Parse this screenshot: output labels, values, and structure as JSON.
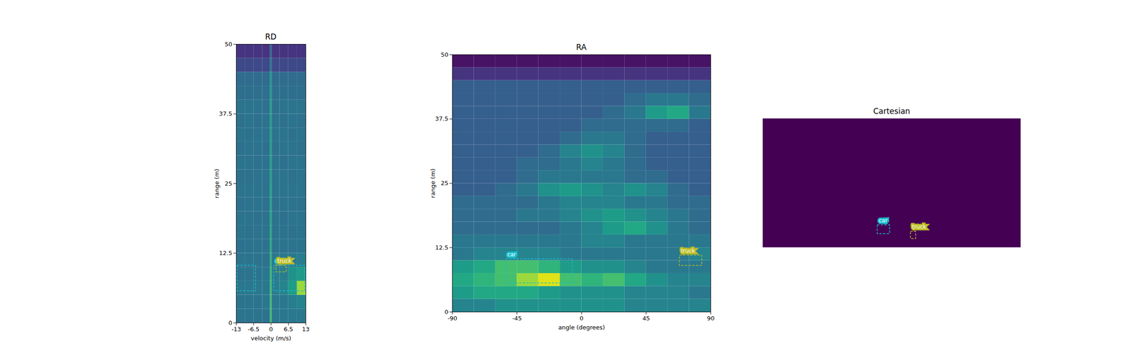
{
  "chart_data": [
    {
      "type": "heatmap",
      "title": "RD",
      "x_label": "velocity (m/s)",
      "y_label": "range (m)",
      "xlim": [
        -13,
        13
      ],
      "xticks": [
        -13,
        -6.5,
        0,
        6.5,
        13
      ],
      "ylim": [
        0,
        50
      ],
      "yticks": [
        0,
        12.5,
        25,
        37.5,
        50
      ],
      "zlim": [
        0,
        1
      ],
      "cells": {
        "x_bins": [
          -13,
          -9.75,
          -6.5,
          -3.25,
          -0.3,
          0.3,
          3.25,
          6.5,
          9.75,
          13
        ],
        "y_bins": [
          0,
          2.5,
          5,
          7.5,
          10,
          12.5,
          15,
          17.5,
          20,
          22.5,
          25,
          27.5,
          30,
          32.5,
          35,
          37.5,
          40,
          42.5,
          45,
          47.5,
          50
        ],
        "z": [
          [
            0.38,
            0.38,
            0.38,
            0.38,
            0.7,
            0.4,
            0.4,
            0.4,
            0.4
          ],
          [
            0.38,
            0.38,
            0.38,
            0.4,
            0.7,
            0.4,
            0.4,
            0.42,
            0.45
          ],
          [
            0.4,
            0.4,
            0.4,
            0.4,
            0.7,
            0.42,
            0.45,
            0.55,
            0.85
          ],
          [
            0.38,
            0.38,
            0.38,
            0.4,
            0.68,
            0.42,
            0.42,
            0.5,
            0.55
          ],
          [
            0.38,
            0.38,
            0.38,
            0.38,
            0.65,
            0.4,
            0.4,
            0.4,
            0.42
          ],
          [
            0.37,
            0.38,
            0.38,
            0.38,
            0.62,
            0.38,
            0.38,
            0.38,
            0.38
          ],
          [
            0.38,
            0.37,
            0.38,
            0.38,
            0.62,
            0.38,
            0.38,
            0.37,
            0.38
          ],
          [
            0.38,
            0.38,
            0.37,
            0.38,
            0.6,
            0.38,
            0.37,
            0.38,
            0.38
          ],
          [
            0.37,
            0.38,
            0.38,
            0.37,
            0.6,
            0.37,
            0.38,
            0.38,
            0.37
          ],
          [
            0.38,
            0.38,
            0.38,
            0.38,
            0.6,
            0.38,
            0.38,
            0.38,
            0.38
          ],
          [
            0.37,
            0.37,
            0.38,
            0.38,
            0.58,
            0.38,
            0.38,
            0.37,
            0.38
          ],
          [
            0.38,
            0.38,
            0.37,
            0.38,
            0.58,
            0.38,
            0.37,
            0.38,
            0.38
          ],
          [
            0.37,
            0.38,
            0.38,
            0.37,
            0.57,
            0.37,
            0.38,
            0.38,
            0.37
          ],
          [
            0.38,
            0.37,
            0.38,
            0.38,
            0.57,
            0.38,
            0.38,
            0.37,
            0.38
          ],
          [
            0.37,
            0.38,
            0.37,
            0.38,
            0.56,
            0.38,
            0.37,
            0.38,
            0.37
          ],
          [
            0.38,
            0.38,
            0.38,
            0.37,
            0.58,
            0.37,
            0.38,
            0.38,
            0.38
          ],
          [
            0.36,
            0.36,
            0.36,
            0.36,
            0.55,
            0.36,
            0.36,
            0.36,
            0.36
          ],
          [
            0.35,
            0.35,
            0.35,
            0.35,
            0.54,
            0.35,
            0.35,
            0.35,
            0.35
          ],
          [
            0.22,
            0.22,
            0.22,
            0.22,
            0.4,
            0.22,
            0.22,
            0.22,
            0.22
          ],
          [
            0.15,
            0.15,
            0.15,
            0.15,
            0.35,
            0.15,
            0.15,
            0.15,
            0.15
          ]
        ]
      },
      "annotations": [
        {
          "label": "car",
          "color": "#17becf",
          "boxes": [
            {
              "x": [
                1.1,
                12.7
              ],
              "y": [
                5.7,
                10.3
              ]
            },
            {
              "x": [
                -12.7,
                -5.7
              ],
              "y": [
                5.7,
                10.3
              ]
            }
          ]
        },
        {
          "label": "truck",
          "color": "#bcbd22",
          "boxes": [
            {
              "x": [
                1.9,
                5.7
              ],
              "y": [
                9.1,
                10.3
              ]
            }
          ]
        }
      ]
    },
    {
      "type": "heatmap",
      "title": "RA",
      "x_label": "angle (degrees)",
      "y_label": "range (m)",
      "xlim": [
        -90,
        90
      ],
      "xticks": [
        -90,
        -45,
        0,
        45,
        90
      ],
      "ylim": [
        0,
        50
      ],
      "yticks": [
        0,
        12.5,
        25,
        37.5,
        50
      ],
      "zlim": [
        0,
        1
      ],
      "cells": {
        "x_bins": [
          -90,
          -75,
          -60,
          -45,
          -30,
          -15,
          0,
          15,
          30,
          45,
          60,
          75,
          90
        ],
        "y_bins": [
          0,
          2.5,
          5,
          7.5,
          10,
          12.5,
          15,
          17.5,
          20,
          22.5,
          25,
          27.5,
          30,
          32.5,
          35,
          37.5,
          40,
          42.5,
          45,
          47.5,
          50
        ],
        "z": [
          [
            0.45,
            0.45,
            0.5,
            0.5,
            0.5,
            0.5,
            0.5,
            0.5,
            0.45,
            0.45,
            0.45,
            0.45
          ],
          [
            0.55,
            0.6,
            0.6,
            0.6,
            0.55,
            0.5,
            0.5,
            0.5,
            0.45,
            0.45,
            0.45,
            0.4
          ],
          [
            0.6,
            0.65,
            0.7,
            0.85,
            0.95,
            0.7,
            0.65,
            0.7,
            0.6,
            0.5,
            0.45,
            0.45
          ],
          [
            0.55,
            0.6,
            0.7,
            0.7,
            0.65,
            0.55,
            0.5,
            0.5,
            0.45,
            0.4,
            0.4,
            0.4
          ],
          [
            0.4,
            0.45,
            0.45,
            0.45,
            0.45,
            0.4,
            0.4,
            0.4,
            0.4,
            0.4,
            0.4,
            0.45
          ],
          [
            0.4,
            0.4,
            0.4,
            0.4,
            0.4,
            0.4,
            0.45,
            0.45,
            0.4,
            0.4,
            0.4,
            0.4
          ],
          [
            0.35,
            0.35,
            0.35,
            0.35,
            0.35,
            0.4,
            0.45,
            0.55,
            0.6,
            0.5,
            0.4,
            0.35
          ],
          [
            0.35,
            0.35,
            0.35,
            0.4,
            0.4,
            0.45,
            0.5,
            0.55,
            0.5,
            0.45,
            0.4,
            0.35
          ],
          [
            0.35,
            0.35,
            0.35,
            0.35,
            0.4,
            0.45,
            0.45,
            0.45,
            0.4,
            0.4,
            0.35,
            0.35
          ],
          [
            0.3,
            0.3,
            0.35,
            0.4,
            0.5,
            0.55,
            0.5,
            0.45,
            0.5,
            0.45,
            0.35,
            0.3
          ],
          [
            0.3,
            0.3,
            0.3,
            0.35,
            0.4,
            0.4,
            0.4,
            0.4,
            0.35,
            0.35,
            0.3,
            0.3
          ],
          [
            0.3,
            0.3,
            0.3,
            0.35,
            0.35,
            0.4,
            0.45,
            0.4,
            0.35,
            0.3,
            0.3,
            0.3
          ],
          [
            0.3,
            0.3,
            0.3,
            0.3,
            0.35,
            0.45,
            0.5,
            0.45,
            0.35,
            0.3,
            0.3,
            0.3
          ],
          [
            0.3,
            0.3,
            0.3,
            0.3,
            0.3,
            0.35,
            0.4,
            0.4,
            0.35,
            0.3,
            0.3,
            0.3
          ],
          [
            0.3,
            0.3,
            0.3,
            0.3,
            0.3,
            0.3,
            0.35,
            0.35,
            0.35,
            0.35,
            0.35,
            0.3
          ],
          [
            0.3,
            0.3,
            0.3,
            0.3,
            0.3,
            0.3,
            0.3,
            0.35,
            0.4,
            0.55,
            0.6,
            0.4
          ],
          [
            0.3,
            0.3,
            0.3,
            0.3,
            0.3,
            0.3,
            0.3,
            0.3,
            0.35,
            0.4,
            0.4,
            0.35
          ],
          [
            0.3,
            0.3,
            0.3,
            0.3,
            0.3,
            0.3,
            0.3,
            0.3,
            0.3,
            0.3,
            0.3,
            0.3
          ],
          [
            0.15,
            0.15,
            0.15,
            0.15,
            0.15,
            0.15,
            0.15,
            0.15,
            0.15,
            0.15,
            0.15,
            0.15
          ],
          [
            0.05,
            0.05,
            0.05,
            0.05,
            0.05,
            0.05,
            0.05,
            0.05,
            0.05,
            0.05,
            0.05,
            0.05
          ]
        ]
      },
      "annotations": [
        {
          "label": "car",
          "color": "#17becf",
          "boxes": [
            {
              "x": [
                -52.7,
                -6.3
              ],
              "y": [
                5.6,
                10.3
              ]
            }
          ]
        },
        {
          "label": "truck",
          "color": "#bcbd22",
          "boxes": [
            {
              "x": [
                68.3,
                83.9
              ],
              "y": [
                9.0,
                11.0
              ]
            }
          ]
        }
      ]
    },
    {
      "type": "heatmap",
      "title": "Cartesian",
      "tick_labels": false,
      "xlim": [
        -50,
        50
      ],
      "ylim": [
        0,
        50
      ],
      "zlim": [
        0,
        1
      ],
      "cells": {
        "x_bins": [
          -50,
          50
        ],
        "y_bins": [
          0,
          50
        ],
        "z": [
          [
            0
          ]
        ]
      },
      "annotations": [
        {
          "label": "car",
          "color": "#17becf",
          "boxes": [
            {
              "x": [
                -5.6,
                -0.8
              ],
              "y": [
                5.3,
                8.7
              ]
            }
          ]
        },
        {
          "label": "truck",
          "color": "#bcbd22",
          "boxes": [
            {
              "x": [
                7.3,
                9.3
              ],
              "y": [
                3.4,
                6.2
              ]
            }
          ]
        }
      ]
    }
  ]
}
